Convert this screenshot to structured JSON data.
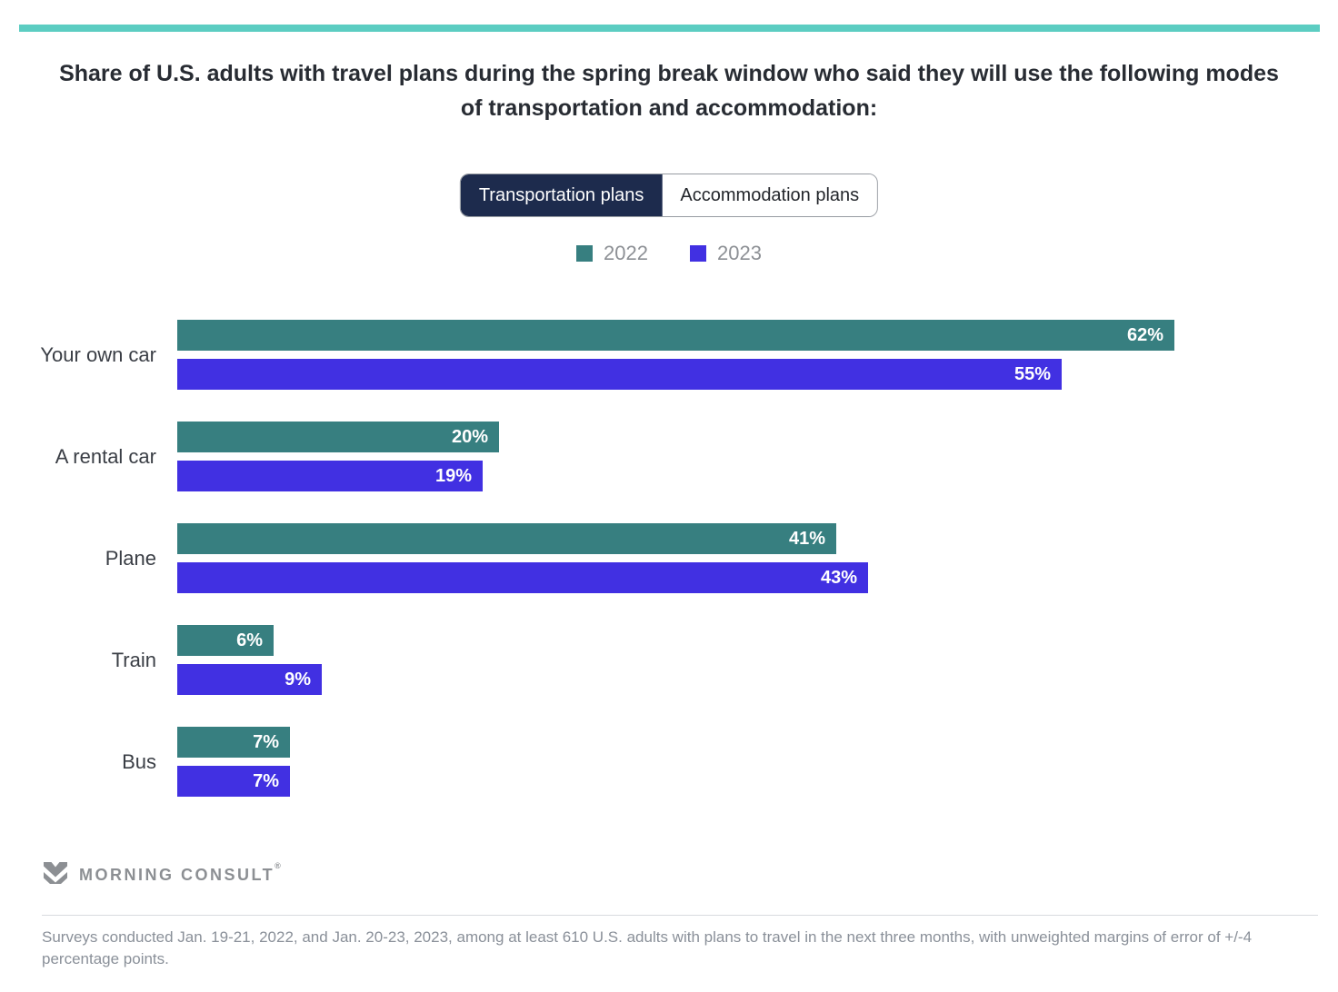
{
  "accent_color": "#5ccdc2",
  "header": {
    "title": "Share of U.S. adults with travel plans during the spring break window who said they will use the following modes of transportation and accommodation:"
  },
  "tabs": [
    {
      "label": "Transportation plans",
      "selected": true
    },
    {
      "label": "Accommodation plans",
      "selected": false
    }
  ],
  "legend": [
    {
      "label": "2022",
      "color": "#377f80"
    },
    {
      "label": "2023",
      "color": "#4130e2"
    }
  ],
  "chart_data": {
    "type": "bar",
    "orientation": "horizontal",
    "title": "Share of U.S. adults with travel plans during the spring break window who said they will use the following modes of transportation and accommodation:",
    "categories": [
      "Your own car",
      "A rental car",
      "Plane",
      "Train",
      "Bus"
    ],
    "series": [
      {
        "name": "2022",
        "color": "#377f80",
        "values": [
          62,
          20,
          41,
          6,
          7
        ]
      },
      {
        "name": "2023",
        "color": "#4130e2",
        "values": [
          55,
          19,
          43,
          9,
          7
        ]
      }
    ],
    "value_suffix": "%",
    "xlim": [
      0,
      70
    ],
    "grid": false,
    "legend_position": "top"
  },
  "footer": {
    "brand": "MORNING CONSULT",
    "trademark": "®",
    "note": "Surveys conducted Jan. 19-21, 2022, and Jan. 20-23, 2023, among at least 610 U.S. adults with plans to travel in the next three months, with unweighted margins of error of +/-4 percentage points."
  }
}
